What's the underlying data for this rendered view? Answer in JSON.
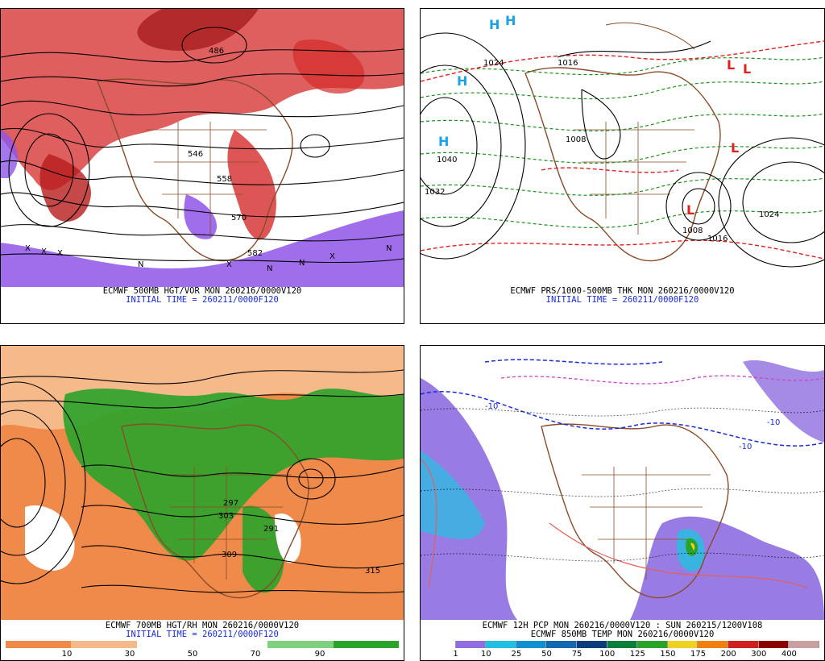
{
  "panels": {
    "top_left": {
      "caption_line1": "ECMWF 500MB HGT/VOR MON 260216/0000V120",
      "caption_line2": "INITIAL TIME = 260211/0000F120",
      "contour_labels": [
        "546",
        "558",
        "570",
        "582",
        "486"
      ],
      "marker_letters": [
        "X",
        "N"
      ],
      "colors": {
        "vorticity_pos": "#d42a2a",
        "vorticity_neg": "#8f55e8",
        "geography": "#8a4b2a"
      }
    },
    "top_right": {
      "caption_line1": "ECMWF PRS/1000-500MB THK MON 260216/0000V120",
      "caption_line2": "INITIAL TIME = 260211/0000F120",
      "pressure_labels": [
        "1040",
        "1032",
        "1024",
        "1016",
        "1008",
        "1024",
        "1016",
        "1008"
      ],
      "high_symbol": "H",
      "low_symbol": "L",
      "colors": {
        "isobar": "#000000",
        "thickness_cold": "#1f8f1f",
        "thickness_warm": "#e02020",
        "high": "#1aa3e8"
      }
    },
    "bottom_left": {
      "caption_line1": "ECMWF 700MB HGT/RH MON 260216/0000V120",
      "caption_line2": "INITIAL TIME = 260211/0000F120",
      "contour_labels": [
        "303",
        "309",
        "315",
        "297",
        "291"
      ],
      "colorbar_ticks": [
        "10",
        "30",
        "50",
        "70",
        "90"
      ],
      "colors": {
        "dry": "#ef8a4a",
        "moist": "#2aa32a"
      }
    },
    "bottom_right": {
      "caption_line1": "ECMWF 12H PCP MON 260216/0000V120 : SUN 260215/1200V108",
      "caption_line2": "ECMWF 850MB TEMP MON 260216/0000V120",
      "contour_labels": [
        "-10",
        "-10",
        "-10"
      ],
      "colorbar_ticks": [
        "1",
        "10",
        "25",
        "50",
        "75",
        "100",
        "125",
        "150",
        "175",
        "200",
        "300",
        "400"
      ],
      "colorbar_colors": [
        "#ffffff",
        "#8e6ee0",
        "#22c0e0",
        "#1090d0",
        "#1468b0",
        "#0a3d7a",
        "#0a7e3a",
        "#2aa32a",
        "#f0d020",
        "#f08010",
        "#d02020",
        "#8b0000",
        "#c8a0a0"
      ],
      "colors": {
        "precip_light": "#8e6ee0",
        "temp_cold": "#1a2bd6",
        "temp_warm": "#e06060"
      }
    }
  }
}
